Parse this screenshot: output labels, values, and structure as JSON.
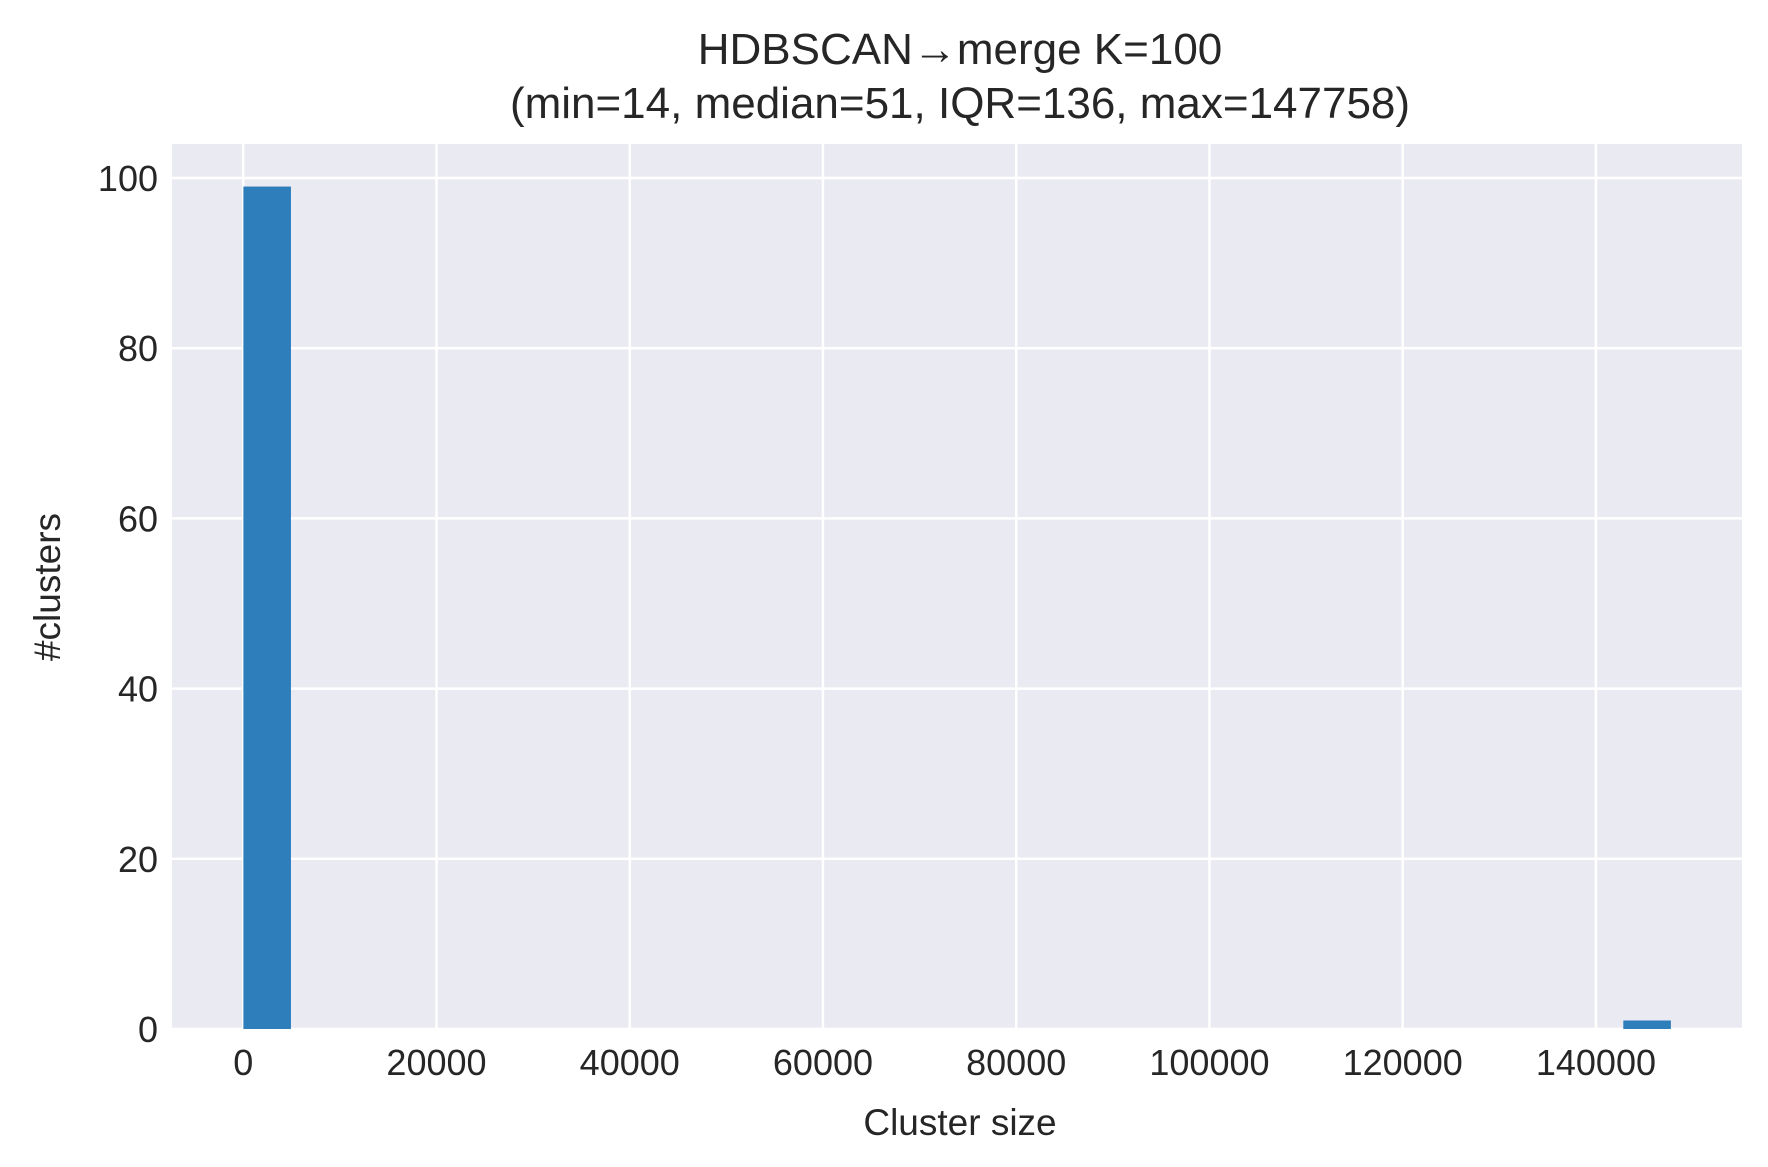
{
  "chart_data": {
    "type": "bar",
    "title_line1": "HDBSCAN→merge K=100",
    "title_line2": "(min=14, median=51, IQR=136, max=147758)",
    "xlabel": "Cluster size",
    "ylabel": "#clusters",
    "xlim": [
      -7374,
      155118
    ],
    "ylim": [
      0,
      104
    ],
    "x_ticks": [
      0,
      20000,
      40000,
      60000,
      80000,
      100000,
      120000,
      140000
    ],
    "y_ticks": [
      0,
      20,
      40,
      60,
      80,
      100
    ],
    "grid": true,
    "legend": "none",
    "bins": [
      {
        "x0": 14,
        "x1": 4938,
        "count": 99
      },
      {
        "x0": 142834,
        "x1": 147758,
        "count": 1
      }
    ],
    "colors": {
      "bar": "#2e7ebc",
      "plot_background": "#eaeaf2",
      "grid": "#ffffff",
      "text": "#262626"
    }
  }
}
